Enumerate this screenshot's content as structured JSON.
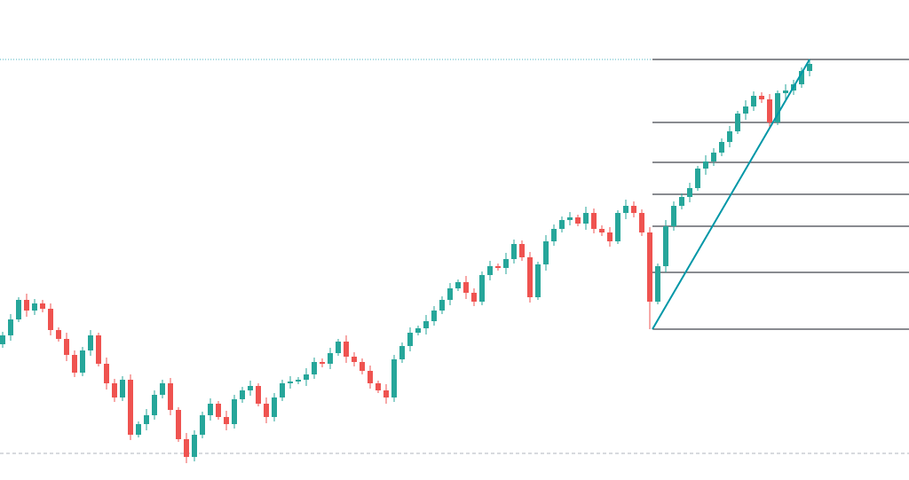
{
  "chart_data": {
    "type": "candlestick",
    "ylim": [
      0,
      541
    ],
    "up_color": "#26a69a",
    "down_color": "#ef5350",
    "open": [
      153,
      163,
      181,
      203,
      191,
      199,
      193,
      169,
      159,
      141,
      121,
      146,
      163,
      131,
      109,
      93,
      113,
      51,
      63,
      73,
      96,
      109,
      79,
      46,
      26,
      51,
      73,
      86,
      71,
      63,
      91,
      101,
      106,
      86,
      71,
      93,
      109,
      111,
      113,
      119,
      133,
      131,
      143,
      156,
      139,
      133,
      123,
      109,
      101,
      93,
      136,
      151,
      166,
      171,
      179,
      191,
      203,
      216,
      223,
      211,
      201,
      231,
      241,
      239,
      249,
      266,
      251,
      206,
      243,
      269,
      283,
      293,
      296,
      289,
      301,
      283,
      279,
      269,
      301,
      309,
      301,
      279,
      201,
      241,
      286,
      309,
      319,
      329,
      351,
      359,
      369,
      381,
      393,
      413,
      421,
      433,
      429,
      403,
      436,
      439,
      446,
      461
    ],
    "high": [
      167,
      187,
      206,
      210,
      204,
      203,
      199,
      172,
      166,
      146,
      150,
      169,
      166,
      138,
      114,
      117,
      119,
      66,
      80,
      101,
      113,
      115,
      82,
      53,
      56,
      77,
      92,
      89,
      78,
      96,
      105,
      112,
      109,
      93,
      98,
      113,
      117,
      116,
      126,
      138,
      137,
      149,
      159,
      163,
      144,
      137,
      129,
      112,
      108,
      141,
      155,
      172,
      174,
      186,
      196,
      207,
      222,
      226,
      230,
      216,
      235,
      247,
      244,
      256,
      271,
      270,
      257,
      246,
      276,
      288,
      297,
      302,
      299,
      308,
      306,
      287,
      285,
      304,
      316,
      314,
      305,
      285,
      244,
      293,
      314,
      323,
      335,
      354,
      366,
      374,
      385,
      399,
      416,
      428,
      438,
      437,
      435,
      439,
      446,
      451,
      465,
      474
    ],
    "low": [
      149,
      157,
      178,
      184,
      186,
      189,
      163,
      156,
      134,
      116,
      117,
      140,
      128,
      102,
      88,
      89,
      45,
      48,
      56,
      68,
      92,
      73,
      43,
      19,
      21,
      47,
      67,
      68,
      56,
      58,
      87,
      95,
      83,
      64,
      66,
      89,
      103,
      108,
      106,
      114,
      127,
      125,
      140,
      132,
      128,
      119,
      103,
      98,
      86,
      88,
      132,
      145,
      163,
      164,
      174,
      187,
      197,
      213,
      204,
      196,
      197,
      225,
      236,
      232,
      244,
      247,
      200,
      203,
      236,
      264,
      279,
      287,
      286,
      282,
      278,
      275,
      263,
      266,
      294,
      296,
      275,
      170,
      198,
      234,
      281,
      305,
      313,
      326,
      344,
      354,
      365,
      375,
      390,
      406,
      416,
      425,
      397,
      400,
      429,
      434,
      442,
      455
    ],
    "close": [
      163,
      181,
      203,
      191,
      199,
      193,
      169,
      159,
      141,
      121,
      146,
      163,
      131,
      109,
      93,
      113,
      51,
      63,
      73,
      96,
      109,
      79,
      46,
      26,
      51,
      73,
      86,
      71,
      63,
      91,
      101,
      106,
      86,
      71,
      93,
      109,
      111,
      113,
      119,
      133,
      131,
      143,
      156,
      139,
      133,
      123,
      109,
      101,
      93,
      136,
      151,
      166,
      171,
      179,
      191,
      203,
      216,
      223,
      211,
      201,
      231,
      241,
      239,
      249,
      266,
      251,
      206,
      243,
      269,
      283,
      293,
      296,
      289,
      301,
      283,
      279,
      269,
      301,
      309,
      301,
      279,
      201,
      241,
      286,
      309,
      319,
      329,
      351,
      359,
      369,
      381,
      393,
      413,
      421,
      433,
      429,
      403,
      436,
      439,
      446,
      461,
      469
    ],
    "fib_levels": [
      474,
      403,
      358,
      322,
      286,
      234,
      170
    ],
    "fib_color": "#131722",
    "trend_line": {
      "from": 170,
      "to": 474,
      "color": "#0097a7"
    },
    "price_line": {
      "value": 474,
      "color": "#0097a7"
    },
    "dashed_line": {
      "value": 30,
      "color": "#b2b5be"
    }
  }
}
